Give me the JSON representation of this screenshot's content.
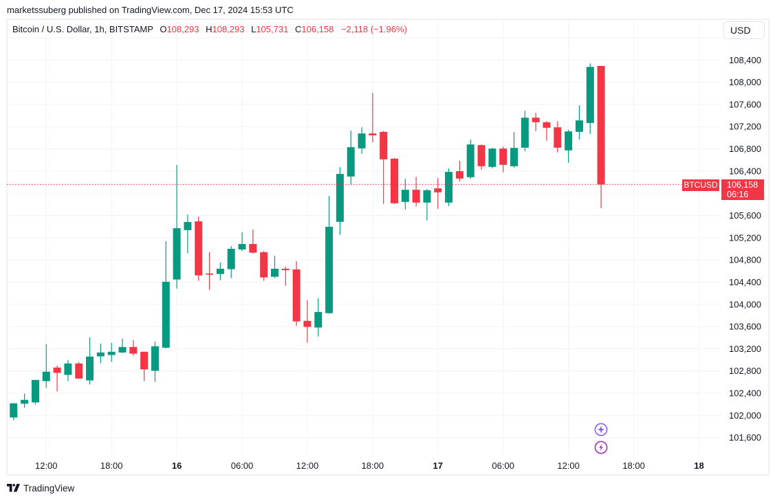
{
  "publish_line": "marketssuberg published on TradingView.com, Dec 17, 2024 15:53 UTC",
  "legend": {
    "symbol": "Bitcoin / U.S. Dollar, 1h, BITSTAMP",
    "o_label": "O",
    "o": "108,293",
    "h_label": "H",
    "h": "108,293",
    "l_label": "L",
    "l": "105,731",
    "c_label": "C",
    "c": "106,158",
    "change": "−2,118 (−1.96%)"
  },
  "currency_button": "USD",
  "price_tag": {
    "symbol": "BTCUSD",
    "price": "106,158",
    "countdown": "06:16"
  },
  "footer": {
    "brand": "TradingView"
  },
  "event_icons": [
    {
      "name": "spark-icon",
      "color": "#7E57FF"
    },
    {
      "name": "lightning-icon",
      "color": "#9C27B0"
    }
  ],
  "colors": {
    "up": "#089981",
    "down": "#F23645",
    "grid": "#F0F3FA",
    "text": "#131722"
  },
  "chart_data": {
    "type": "candlestick",
    "title": "Bitcoin / U.S. Dollar, 1h, BITSTAMP",
    "interval": "1h",
    "xlabel": "",
    "ylabel": "USD",
    "grid": true,
    "ylim": [
      101274,
      109134
    ],
    "last_price": 106158,
    "x": [
      "Dec 15 09:00",
      "Dec 15 10:00",
      "Dec 15 11:00",
      "Dec 15 12:00",
      "Dec 15 13:00",
      "Dec 15 14:00",
      "Dec 15 15:00",
      "Dec 15 16:00",
      "Dec 15 17:00",
      "Dec 15 18:00",
      "Dec 15 19:00",
      "Dec 15 20:00",
      "Dec 15 21:00",
      "Dec 15 22:00",
      "Dec 15 23:00",
      "Dec 16 00:00",
      "Dec 16 01:00",
      "Dec 16 02:00",
      "Dec 16 03:00",
      "Dec 16 04:00",
      "Dec 16 05:00",
      "Dec 16 06:00",
      "Dec 16 07:00",
      "Dec 16 08:00",
      "Dec 16 09:00",
      "Dec 16 10:00",
      "Dec 16 11:00",
      "Dec 16 12:00",
      "Dec 16 13:00",
      "Dec 16 14:00",
      "Dec 16 15:00",
      "Dec 16 16:00",
      "Dec 16 17:00",
      "Dec 16 18:00",
      "Dec 16 19:00",
      "Dec 16 20:00",
      "Dec 16 21:00",
      "Dec 16 22:00",
      "Dec 16 23:00",
      "Dec 17 00:00",
      "Dec 17 01:00",
      "Dec 17 02:00",
      "Dec 17 03:00",
      "Dec 17 04:00",
      "Dec 17 05:00",
      "Dec 17 06:00",
      "Dec 17 07:00",
      "Dec 17 08:00",
      "Dec 17 09:00",
      "Dec 17 10:00",
      "Dec 17 11:00",
      "Dec 17 12:00",
      "Dec 17 13:00",
      "Dec 17 14:00",
      "Dec 17 15:00"
    ],
    "ohlc_fields": [
      "open",
      "high",
      "low",
      "close"
    ],
    "ohlc": [
      [
        101962,
        102218,
        101913,
        102218
      ],
      [
        102210,
        102391,
        102135,
        102280
      ],
      [
        102234,
        102638,
        102197,
        102638
      ],
      [
        102617,
        103281,
        102494,
        102787
      ],
      [
        102861,
        102898,
        102432,
        102766
      ],
      [
        102729,
        102997,
        102617,
        102935
      ],
      [
        102935,
        102960,
        102663,
        102663
      ],
      [
        102630,
        103405,
        102556,
        103059
      ],
      [
        103063,
        103294,
        102939,
        103133
      ],
      [
        103087,
        103306,
        102964,
        103146
      ],
      [
        103133,
        103380,
        103120,
        103232
      ],
      [
        103232,
        103355,
        103075,
        103112
      ],
      [
        103146,
        103146,
        102617,
        102828
      ],
      [
        102803,
        103331,
        102605,
        103244
      ],
      [
        103219,
        105136,
        103207,
        104406
      ],
      [
        104447,
        106508,
        104283,
        105371
      ],
      [
        105337,
        105618,
        104917,
        105482
      ],
      [
        105494,
        105581,
        104423,
        104521
      ],
      [
        104555,
        104938,
        104263,
        104534
      ],
      [
        104546,
        104753,
        104435,
        104641
      ],
      [
        104633,
        105049,
        104472,
        105000
      ],
      [
        104988,
        105297,
        104963,
        105086
      ],
      [
        105086,
        105346,
        104917,
        104930
      ],
      [
        104938,
        104963,
        104423,
        104484
      ],
      [
        104497,
        104876,
        104472,
        104641
      ],
      [
        104641,
        104679,
        104333,
        104616
      ],
      [
        104629,
        104777,
        103611,
        103693
      ],
      [
        103702,
        104073,
        103310,
        103594
      ],
      [
        103582,
        104110,
        103421,
        103862
      ],
      [
        103841,
        105952,
        103830,
        105396
      ],
      [
        105486,
        106471,
        105251,
        106348
      ],
      [
        106302,
        107127,
        106154,
        106830
      ],
      [
        106809,
        107188,
        106710,
        107077
      ],
      [
        107077,
        107807,
        106920,
        107044
      ],
      [
        107106,
        107119,
        105807,
        106611
      ],
      [
        106623,
        106635,
        105807,
        105820
      ],
      [
        105844,
        106261,
        105708,
        106063
      ],
      [
        106063,
        106298,
        105759,
        105832
      ],
      [
        105832,
        106075,
        105511,
        106055
      ],
      [
        106088,
        106273,
        105721,
        106017
      ],
      [
        105832,
        106447,
        105770,
        106385
      ],
      [
        106397,
        106583,
        106215,
        106265
      ],
      [
        106290,
        106966,
        106265,
        106879
      ],
      [
        106867,
        106879,
        106425,
        106487
      ],
      [
        106475,
        106817,
        106450,
        106805
      ],
      [
        106805,
        106842,
        106376,
        106512
      ],
      [
        106487,
        107102,
        106463,
        106817
      ],
      [
        106821,
        107485,
        106759,
        107361
      ],
      [
        107361,
        107448,
        107118,
        107279
      ],
      [
        107279,
        107300,
        106945,
        107180
      ],
      [
        107188,
        107300,
        106735,
        106821
      ],
      [
        106772,
        107143,
        106549,
        107114
      ],
      [
        107106,
        107584,
        106970,
        107312
      ],
      [
        107266,
        108338,
        107068,
        108276
      ],
      [
        108293,
        108293,
        105731,
        106158
      ]
    ],
    "x_ticks": [
      {
        "index": 3,
        "label": "12:00",
        "bold": false
      },
      {
        "index": 9,
        "label": "18:00",
        "bold": false
      },
      {
        "index": 15,
        "label": "16",
        "bold": true
      },
      {
        "index": 21,
        "label": "06:00",
        "bold": false
      },
      {
        "index": 27,
        "label": "12:00",
        "bold": false
      },
      {
        "index": 33,
        "label": "18:00",
        "bold": false
      },
      {
        "index": 39,
        "label": "17",
        "bold": true
      },
      {
        "index": 45,
        "label": "06:00",
        "bold": false
      },
      {
        "index": 51,
        "label": "12:00",
        "bold": false
      },
      {
        "index": 57,
        "label": "18:00",
        "bold": false
      },
      {
        "index": 63,
        "label": "18",
        "bold": true
      }
    ],
    "y_ticks": [
      108400,
      108000,
      107600,
      107200,
      106800,
      106400,
      105600,
      105200,
      104800,
      104400,
      104000,
      103600,
      103200,
      102800,
      102400,
      102000,
      101600
    ]
  }
}
